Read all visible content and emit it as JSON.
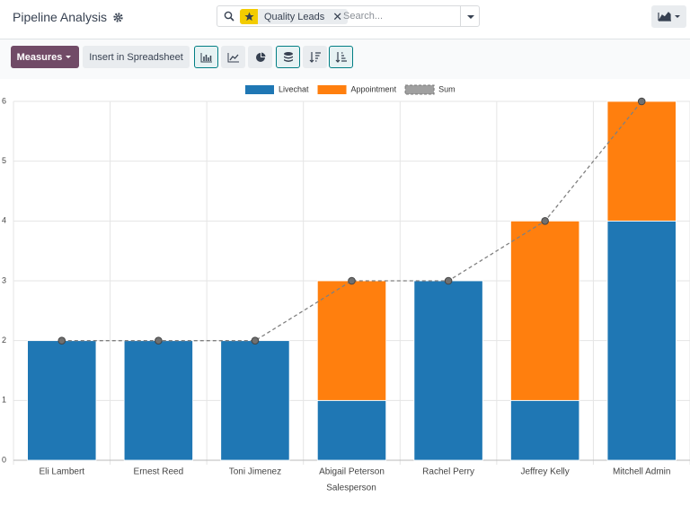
{
  "header": {
    "title": "Pipeline Analysis",
    "search": {
      "facet": "Quality Leads",
      "placeholder": "Search..."
    }
  },
  "toolbar": {
    "measures": "Measures",
    "spreadsheet": "Insert in Spreadsheet"
  },
  "chart_data": {
    "type": "bar",
    "stacked": true,
    "grid": true,
    "legend": "top",
    "x_label": "Salesperson",
    "categories": [
      "Eli Lambert",
      "Ernest Reed",
      "Toni Jimenez",
      "Abigail Peterson",
      "Rachel Perry",
      "Jeffrey Kelly",
      "Mitchell Admin"
    ],
    "series": [
      {
        "name": "Livechat",
        "color": "#1f77b4",
        "values": [
          2,
          2,
          2,
          1,
          3,
          1,
          4
        ]
      },
      {
        "name": "Appointment",
        "color": "#ff7f0e",
        "values": [
          0,
          0,
          0,
          2,
          0,
          3,
          2
        ]
      },
      {
        "name": "Sum",
        "color": "#808080",
        "type": "line",
        "dashed": true,
        "values": [
          2,
          2,
          2,
          3,
          3,
          4,
          6
        ]
      }
    ],
    "ylim": [
      0,
      6
    ],
    "yticks": [
      0,
      1,
      2,
      3,
      4,
      5,
      6
    ]
  }
}
